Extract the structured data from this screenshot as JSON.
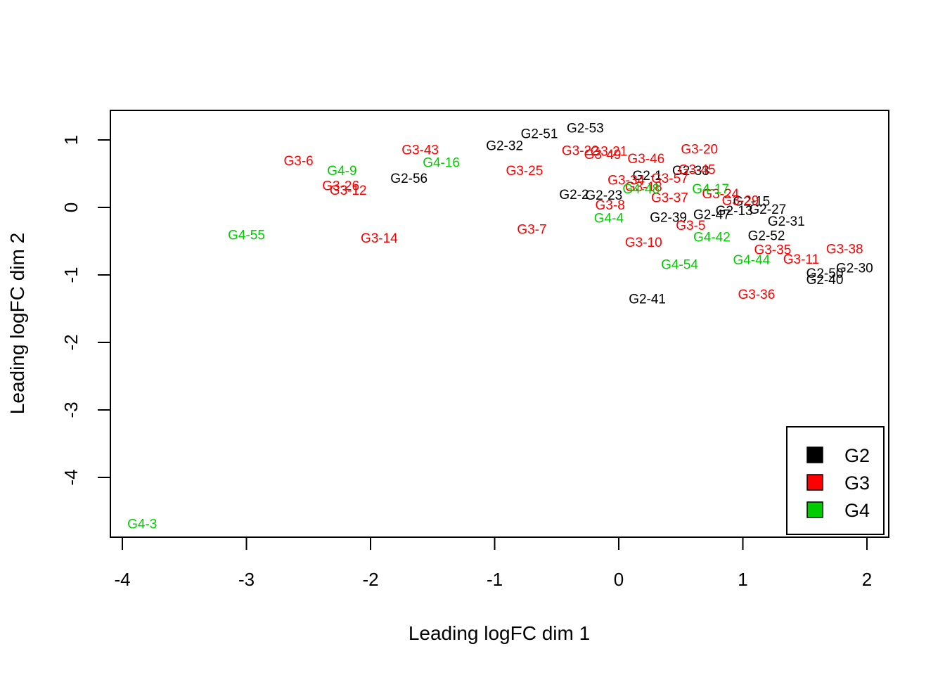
{
  "chart_data": {
    "type": "scatter",
    "xlabel": "Leading logFC dim 1",
    "ylabel": "Leading logFC dim 2",
    "xlim": [
      -4.1,
      2.2
    ],
    "ylim": [
      -4.9,
      1.45
    ],
    "xticks": [
      -4,
      -3,
      -2,
      -1,
      0,
      1,
      2
    ],
    "yticks": [
      -4,
      -3,
      -2,
      -1,
      0,
      1
    ],
    "legend_position": "bottom-right",
    "groups": [
      {
        "name": "G2",
        "color": "#000000"
      },
      {
        "name": "G3",
        "color": "#ff0000"
      },
      {
        "name": "G4",
        "color": "#00cd00"
      }
    ],
    "points": [
      {
        "label": "G2-51",
        "group": "G2",
        "x": -0.64,
        "y": 1.1
      },
      {
        "label": "G2-53",
        "group": "G2",
        "x": -0.27,
        "y": 1.18
      },
      {
        "label": "G2-32",
        "group": "G2",
        "x": -0.92,
        "y": 0.92
      },
      {
        "label": "G2-56",
        "group": "G2",
        "x": -1.69,
        "y": 0.44
      },
      {
        "label": "G2-2",
        "group": "G2",
        "x": -0.36,
        "y": 0.2
      },
      {
        "label": "G2-23",
        "group": "G2",
        "x": -0.12,
        "y": 0.19
      },
      {
        "label": "G2-1",
        "group": "G2",
        "x": 0.23,
        "y": 0.48
      },
      {
        "label": "G2-33",
        "group": "G2",
        "x": 0.58,
        "y": 0.55
      },
      {
        "label": "G2-39",
        "group": "G2",
        "x": 0.4,
        "y": -0.14
      },
      {
        "label": "G2-47",
        "group": "G2",
        "x": 0.75,
        "y": -0.1
      },
      {
        "label": "G2-13",
        "group": "G2",
        "x": 0.93,
        "y": -0.04
      },
      {
        "label": "G2-15",
        "group": "G2",
        "x": 1.07,
        "y": 0.1
      },
      {
        "label": "G2-27",
        "group": "G2",
        "x": 1.2,
        "y": -0.02
      },
      {
        "label": "G2-31",
        "group": "G2",
        "x": 1.35,
        "y": -0.2
      },
      {
        "label": "G2-52",
        "group": "G2",
        "x": 1.19,
        "y": -0.41
      },
      {
        "label": "G2-50",
        "group": "G2",
        "x": 1.66,
        "y": -0.97
      },
      {
        "label": "G2-30",
        "group": "G2",
        "x": 1.9,
        "y": -0.89
      },
      {
        "label": "G2-40",
        "group": "G2",
        "x": 1.66,
        "y": -1.06
      },
      {
        "label": "G2-41",
        "group": "G2",
        "x": 0.23,
        "y": -1.35
      },
      {
        "label": "G3-6",
        "group": "G3",
        "x": -2.58,
        "y": 0.7
      },
      {
        "label": "G3-43",
        "group": "G3",
        "x": -1.6,
        "y": 0.86
      },
      {
        "label": "G3-26",
        "group": "G3",
        "x": -2.24,
        "y": 0.33
      },
      {
        "label": "G3-12",
        "group": "G3",
        "x": -2.18,
        "y": 0.26
      },
      {
        "label": "G3-14",
        "group": "G3",
        "x": -1.93,
        "y": -0.45
      },
      {
        "label": "G3-25",
        "group": "G3",
        "x": -0.76,
        "y": 0.55
      },
      {
        "label": "G3-7",
        "group": "G3",
        "x": -0.7,
        "y": -0.32
      },
      {
        "label": "G3-22",
        "group": "G3",
        "x": -0.31,
        "y": 0.85
      },
      {
        "label": "G3-21",
        "group": "G3",
        "x": -0.08,
        "y": 0.84
      },
      {
        "label": "G3-49",
        "group": "G3",
        "x": -0.13,
        "y": 0.79
      },
      {
        "label": "G3-46",
        "group": "G3",
        "x": 0.22,
        "y": 0.73
      },
      {
        "label": "G3-20",
        "group": "G3",
        "x": 0.65,
        "y": 0.87
      },
      {
        "label": "G3-45",
        "group": "G3",
        "x": 0.63,
        "y": 0.57
      },
      {
        "label": "G3-34",
        "group": "G3",
        "x": 0.06,
        "y": 0.41
      },
      {
        "label": "G3-57",
        "group": "G3",
        "x": 0.41,
        "y": 0.44
      },
      {
        "label": "G3-18",
        "group": "G3",
        "x": 0.2,
        "y": 0.31
      },
      {
        "label": "G3-37",
        "group": "G3",
        "x": 0.41,
        "y": 0.15
      },
      {
        "label": "G3-8",
        "group": "G3",
        "x": -0.07,
        "y": 0.04
      },
      {
        "label": "G3-24",
        "group": "G3",
        "x": 0.82,
        "y": 0.21
      },
      {
        "label": "G3-29",
        "group": "G3",
        "x": 0.98,
        "y": 0.11
      },
      {
        "label": "G3-5",
        "group": "G3",
        "x": 0.58,
        "y": -0.26
      },
      {
        "label": "G3-10",
        "group": "G3",
        "x": 0.2,
        "y": -0.51
      },
      {
        "label": "G3-35",
        "group": "G3",
        "x": 1.24,
        "y": -0.62
      },
      {
        "label": "G3-38",
        "group": "G3",
        "x": 1.82,
        "y": -0.61
      },
      {
        "label": "G3-11",
        "group": "G3",
        "x": 1.47,
        "y": -0.76
      },
      {
        "label": "G3-36",
        "group": "G3",
        "x": 1.11,
        "y": -1.28
      },
      {
        "label": "G4-9",
        "group": "G4",
        "x": -2.23,
        "y": 0.55
      },
      {
        "label": "G4-16",
        "group": "G4",
        "x": -1.43,
        "y": 0.67
      },
      {
        "label": "G4-55",
        "group": "G4",
        "x": -3.0,
        "y": -0.4
      },
      {
        "label": "G4-3",
        "group": "G4",
        "x": -3.84,
        "y": -4.68
      },
      {
        "label": "G4-48",
        "group": "G4",
        "x": 0.18,
        "y": 0.28
      },
      {
        "label": "G4-17",
        "group": "G4",
        "x": 0.74,
        "y": 0.28
      },
      {
        "label": "G4-4",
        "group": "G4",
        "x": -0.08,
        "y": -0.15
      },
      {
        "label": "G4-42",
        "group": "G4",
        "x": 0.75,
        "y": -0.43
      },
      {
        "label": "G4-54",
        "group": "G4",
        "x": 0.49,
        "y": -0.84
      },
      {
        "label": "G4-44",
        "group": "G4",
        "x": 1.07,
        "y": -0.77
      }
    ]
  }
}
